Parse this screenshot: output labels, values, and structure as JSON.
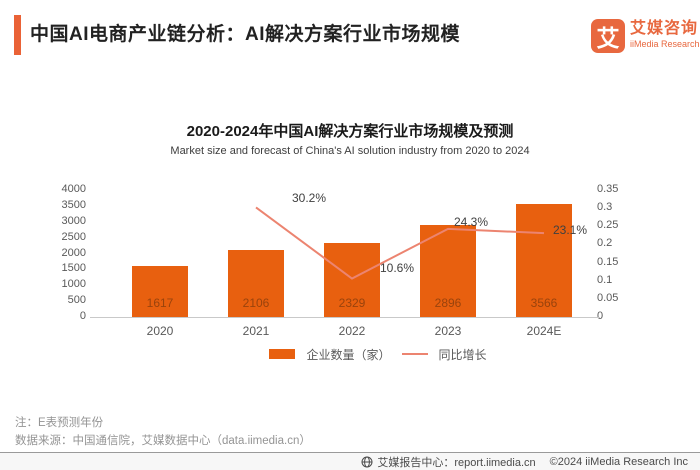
{
  "header": {
    "title": "中国AI电商产业链分析：AI解决方案行业市场规模",
    "logo": {
      "glyph": "艾",
      "name_cn": "艾媒咨询",
      "name_en": "iiMedia Research"
    }
  },
  "chart": {
    "title": "2020-2024年中国AI解决方案行业市场规模及预测",
    "subtitle": "Market size and forecast of China's AI solution industry from 2020 to 2024"
  },
  "chart_data": {
    "type": "bar",
    "categories": [
      "2020",
      "2021",
      "2022",
      "2023",
      "2024E"
    ],
    "series": [
      {
        "name": "企业数量（家）",
        "type": "bar",
        "axis": "left",
        "values": [
          1617,
          2106,
          2329,
          2896,
          3566
        ],
        "color": "#e8600f"
      },
      {
        "name": "同比增长",
        "type": "line",
        "axis": "right",
        "values": [
          null,
          0.302,
          0.106,
          0.243,
          0.231
        ],
        "labels": [
          "",
          "30.2%",
          "10.6%",
          "24.3%",
          "23.1%"
        ],
        "color": "#ec8470"
      }
    ],
    "left_axis": {
      "min": 0,
      "max": 4000,
      "step": 500
    },
    "right_axis": {
      "min": 0,
      "max": 0.35,
      "step": 0.05
    },
    "grid": false,
    "legend_position": "bottom",
    "title": "2020-2024年中国AI解决方案行业市场规模及预测",
    "xlabel": "",
    "ylabel": ""
  },
  "legend": {
    "bar_label": "企业数量（家）",
    "line_label": "同比增长"
  },
  "notes": {
    "note1": "注：E表预测年份",
    "note2": "数据来源：中国通信院，艾媒数据中心（data.iimedia.cn）"
  },
  "footer": {
    "center_label": "艾媒报告中心：report.iimedia.cn",
    "copyright": "©2024  iiMedia Research Inc"
  },
  "colors": {
    "accent": "#ea6236",
    "bar": "#e8600f",
    "line": "#ec8470"
  }
}
